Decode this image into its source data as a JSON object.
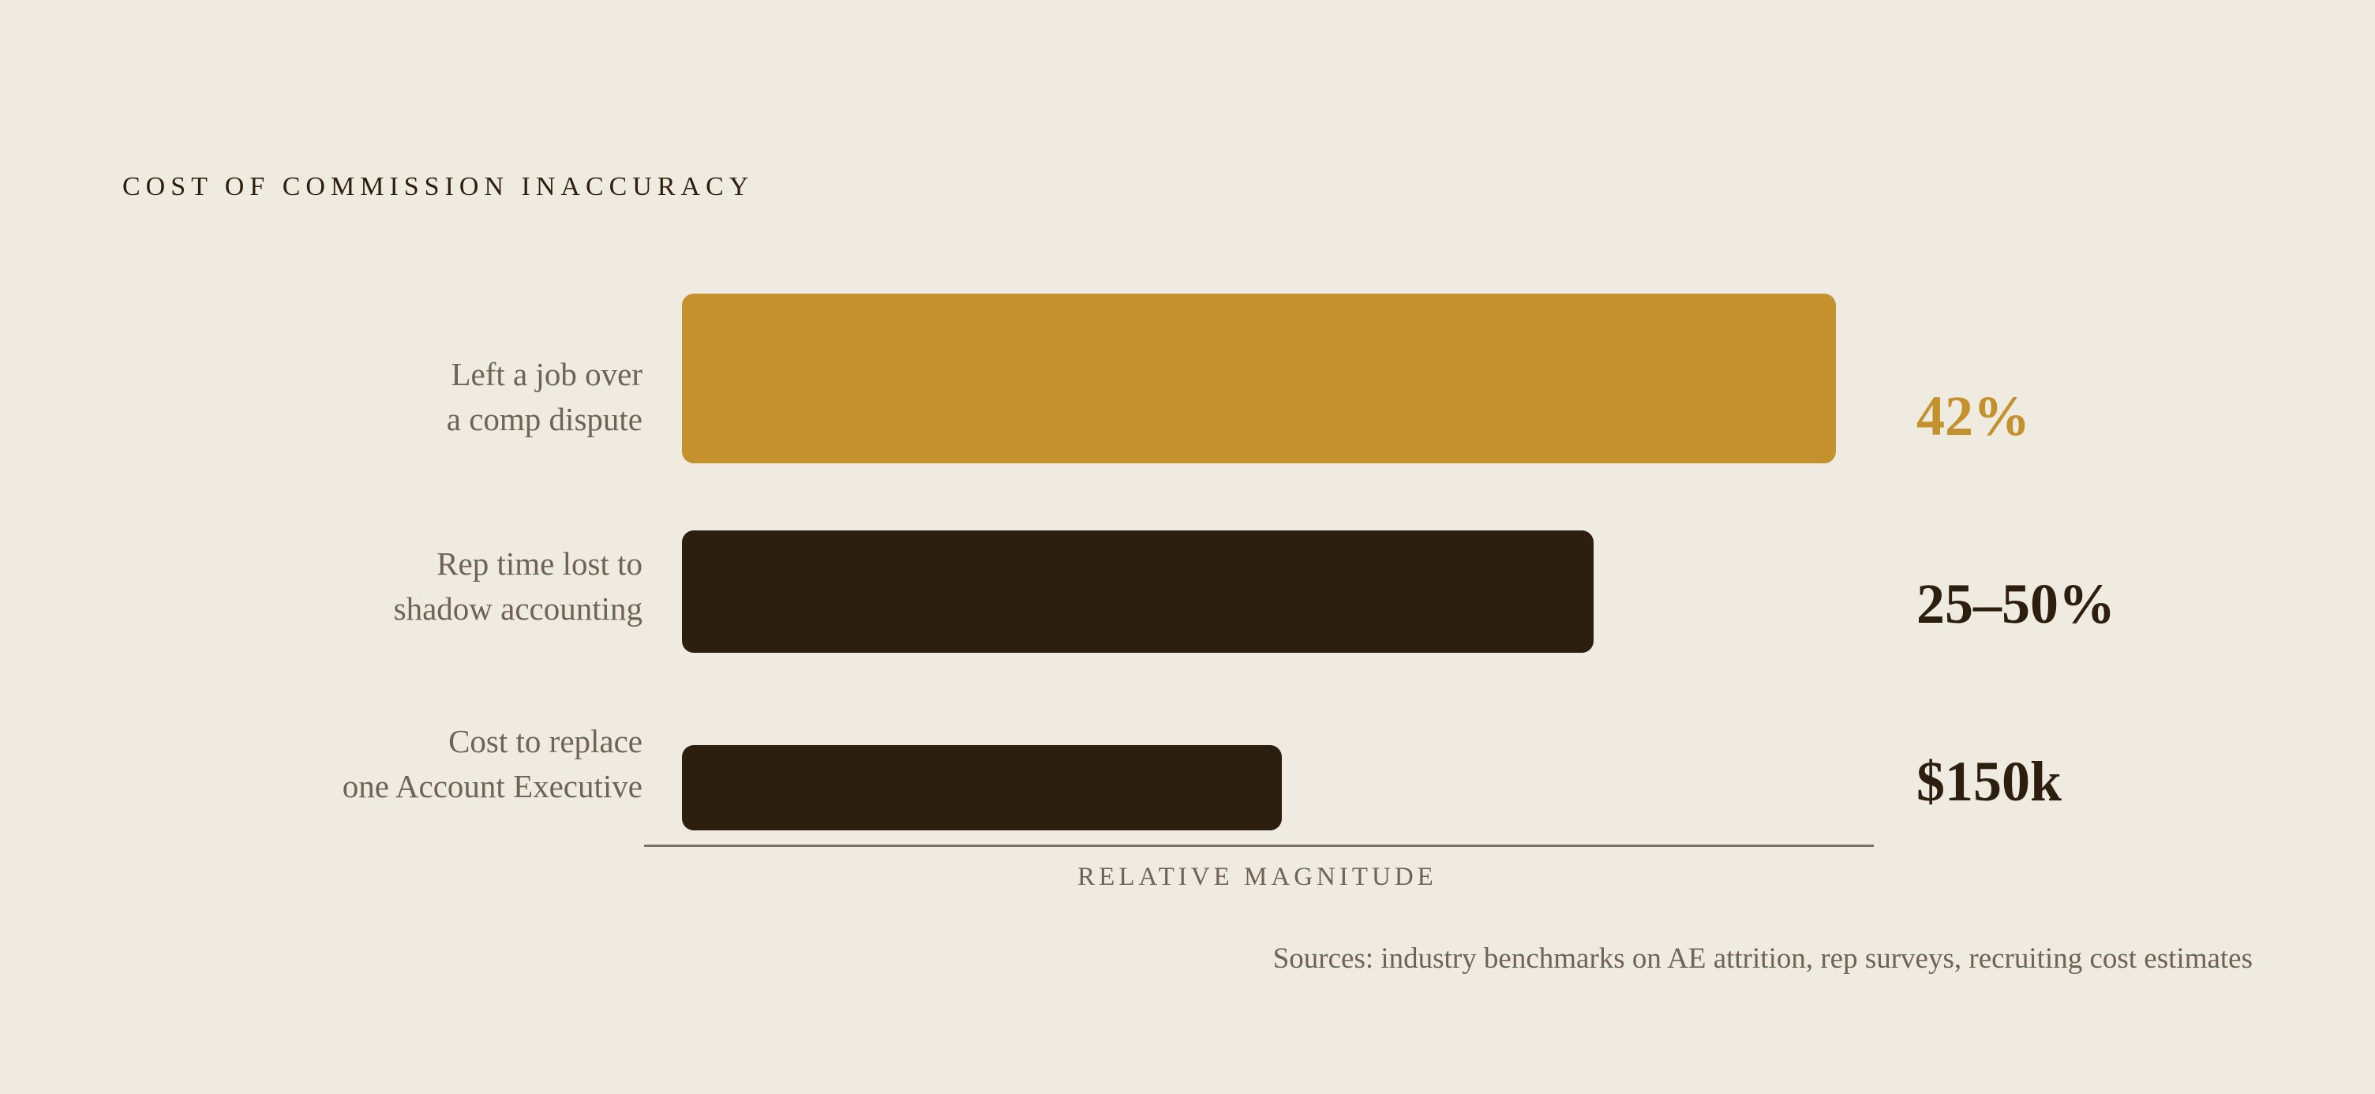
{
  "title": "COST OF COMMISSION INACCURACY",
  "rows": [
    {
      "label_lines": [
        "Left a job over",
        "a comp dispute"
      ],
      "value": "42%"
    },
    {
      "label_lines": [
        "Rep time lost to",
        "shadow accounting"
      ],
      "value": "25–50%"
    },
    {
      "label_lines": [
        "Cost to replace",
        "one Account Executive"
      ],
      "value": "$150k"
    }
  ],
  "axis_label": "RELATIVE MAGNITUDE",
  "sources": "Sources: industry benchmarks on AE attrition, rep surveys, recruiting cost estimates"
}
